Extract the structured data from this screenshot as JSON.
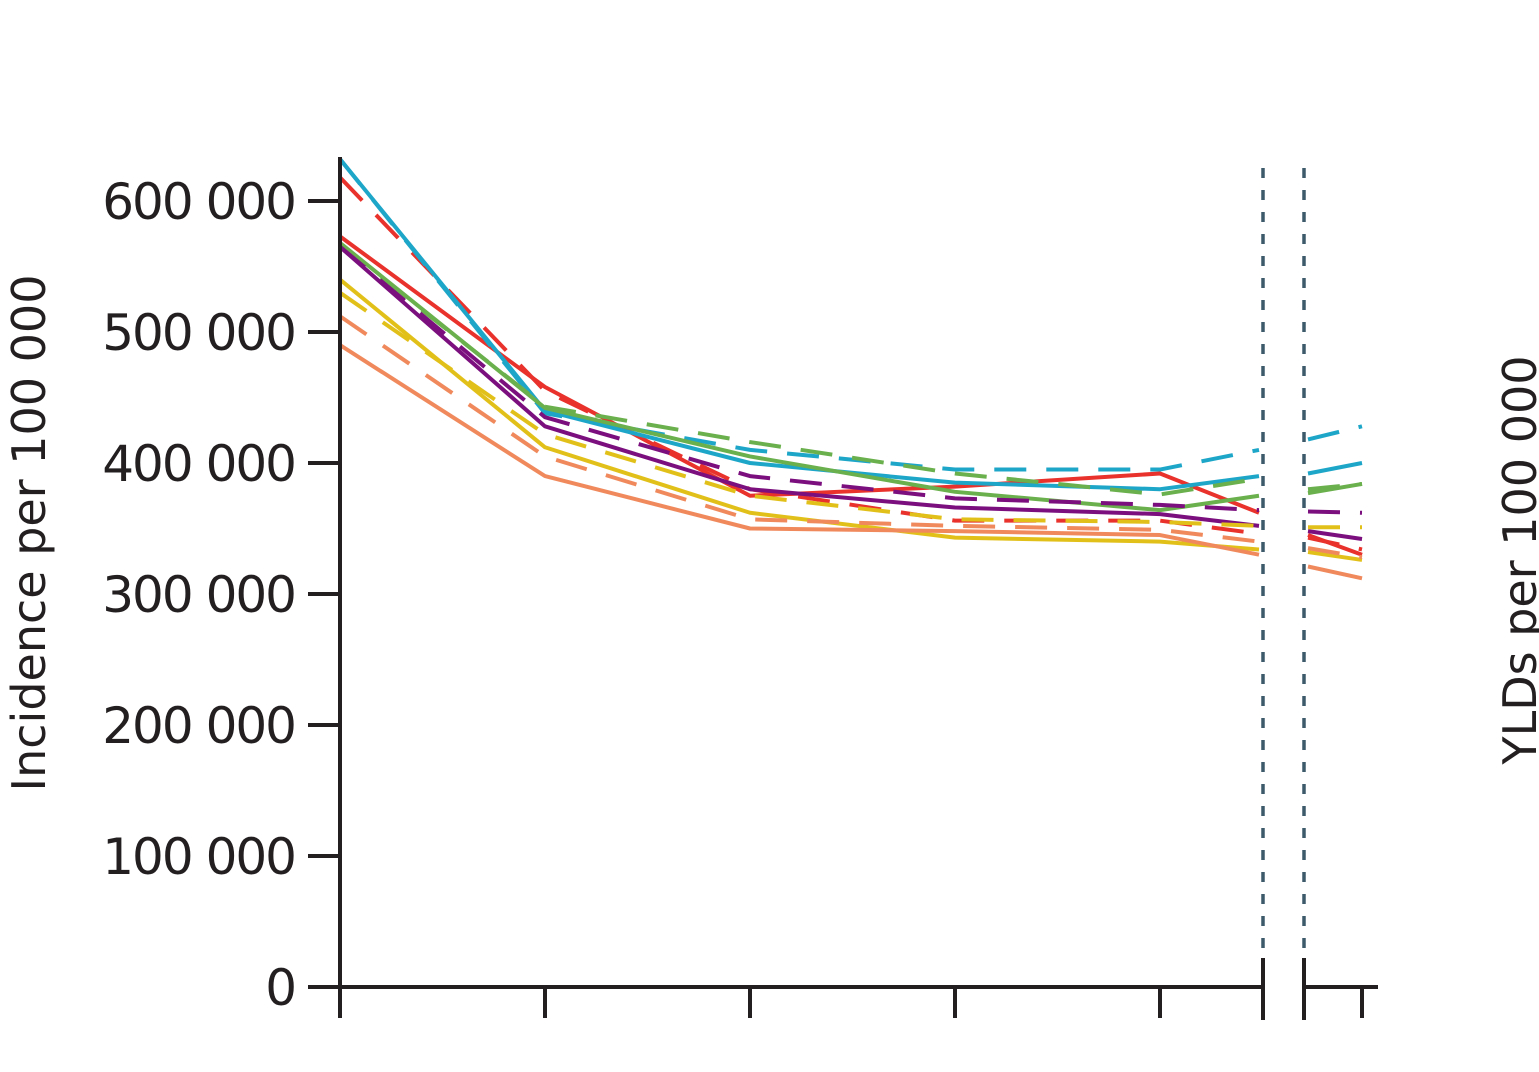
{
  "chart_data": {
    "type": "line",
    "ylabel": "Incidence per 100 000",
    "right_ylabel": "YLDs per 100 000",
    "ylim": [
      0,
      600000
    ],
    "yticks": [
      0,
      100000,
      200000,
      300000,
      400000,
      500000,
      600000
    ],
    "ytick_labels": [
      "0",
      "100 000",
      "200 000",
      "300 000",
      "400 000",
      "500 000",
      "600 000"
    ],
    "x": [
      0,
      1,
      2,
      3,
      4,
      4.5
    ],
    "x_after_break": [
      4.7,
      5
    ],
    "axis_break": true,
    "grid": false,
    "series": [
      {
        "color": "#e8322b",
        "dash": false,
        "values": [
          573000,
          458000,
          375000,
          382000,
          392000,
          362000
        ],
        "after_break": [
          345000,
          330000
        ]
      },
      {
        "color": "#e8322b",
        "dash": true,
        "values": [
          618000,
          455000,
          380000,
          356000,
          356000,
          346000
        ],
        "after_break": [
          343000,
          334000
        ]
      },
      {
        "color": "#1ea6c8",
        "dash": false,
        "values": [
          632000,
          440000,
          400000,
          385000,
          380000,
          390000
        ],
        "after_break": [
          392000,
          400000
        ]
      },
      {
        "color": "#1ea6c8",
        "dash": true,
        "values": [
          632000,
          438000,
          410000,
          395000,
          395000,
          410000
        ],
        "after_break": [
          418000,
          428000
        ]
      },
      {
        "color": "#6ab04c",
        "dash": false,
        "values": [
          568000,
          442000,
          405000,
          378000,
          364000,
          375000
        ],
        "after_break": [
          377000,
          384000
        ]
      },
      {
        "color": "#6ab04c",
        "dash": true,
        "values": [
          566000,
          443000,
          416000,
          392000,
          376000,
          388000
        ],
        "after_break": [
          380000,
          384000
        ]
      },
      {
        "color": "#7b0f7e",
        "dash": false,
        "values": [
          565000,
          428000,
          380000,
          366000,
          361000,
          352000
        ],
        "after_break": [
          348000,
          342000
        ]
      },
      {
        "color": "#7b0f7e",
        "dash": true,
        "values": [
          565000,
          435000,
          390000,
          373000,
          368000,
          364000
        ],
        "after_break": [
          363000,
          362000
        ]
      },
      {
        "color": "#e2c01a",
        "dash": false,
        "values": [
          540000,
          412000,
          362000,
          343000,
          340000,
          334000
        ],
        "after_break": [
          332000,
          326000
        ]
      },
      {
        "color": "#e2c01a",
        "dash": true,
        "values": [
          530000,
          422000,
          375000,
          357000,
          355000,
          352000
        ],
        "after_break": [
          351000,
          351000
        ]
      },
      {
        "color": "#f08a5d",
        "dash": false,
        "values": [
          490000,
          390000,
          350000,
          348000,
          345000,
          330000
        ],
        "after_break": [
          321000,
          312000
        ]
      },
      {
        "color": "#f08a5d",
        "dash": true,
        "values": [
          512000,
          405000,
          357000,
          352000,
          349000,
          340000
        ],
        "after_break": [
          335000,
          328000
        ]
      }
    ]
  }
}
